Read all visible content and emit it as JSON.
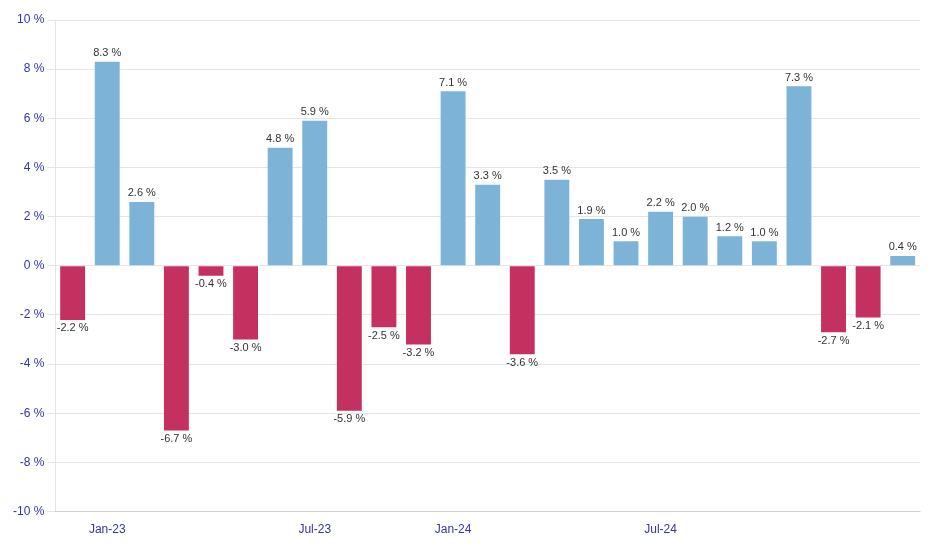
{
  "chart_data": {
    "type": "bar",
    "categories": [
      null,
      "Jan-23",
      null,
      null,
      null,
      null,
      null,
      "Jul-23",
      null,
      null,
      null,
      "Jan-24",
      null,
      null,
      null,
      null,
      null,
      "Jul-24",
      null,
      null,
      null,
      null,
      null,
      null,
      null
    ],
    "values": [
      -2.2,
      8.3,
      2.6,
      -6.7,
      -0.4,
      -3.0,
      4.8,
      5.9,
      -5.9,
      -2.5,
      -3.2,
      7.1,
      3.3,
      -3.6,
      3.5,
      1.9,
      1.0,
      2.2,
      2.0,
      1.2,
      1.0,
      7.3,
      -2.7,
      -2.1,
      0.4
    ],
    "value_labels": [
      "-2.2 %",
      "8.3 %",
      "2.6 %",
      "-6.7 %",
      "-0.4 %",
      "-3.0 %",
      "4.8 %",
      "5.9 %",
      "-5.9 %",
      "-2.5 %",
      "-3.2 %",
      "7.1 %",
      "3.3 %",
      "-3.6 %",
      "3.5 %",
      "1.9 %",
      "1.0 %",
      "2.2 %",
      "2.0 %",
      "1.2 %",
      "1.0 %",
      "7.3 %",
      "-2.7 %",
      "-2.1 %",
      "0.4 %"
    ],
    "colors": [
      "#C43060",
      "#7EB3D8",
      "#7EB3D8",
      "#C43060",
      "#C43060",
      "#C43060",
      "#7EB3D8",
      "#7EB3D8",
      "#C43060",
      "#C43060",
      "#C43060",
      "#7EB3D8",
      "#7EB3D8",
      "#C43060",
      "#7EB3D8",
      "#7EB3D8",
      "#7EB3D8",
      "#7EB3D8",
      "#7EB3D8",
      "#7EB3D8",
      "#7EB3D8",
      "#7EB3D8",
      "#C43060",
      "#C43060",
      "#7EB3D8"
    ],
    "ylim": [
      -10,
      10
    ],
    "yticks": [
      {
        "value": -10,
        "label": "-10 %"
      },
      {
        "value": -8,
        "label": "-8 %"
      },
      {
        "value": -6,
        "label": "-6 %"
      },
      {
        "value": -4,
        "label": "-4 %"
      },
      {
        "value": -2,
        "label": "-2 %"
      },
      {
        "value": 0,
        "label": "0 %"
      },
      {
        "value": 2,
        "label": "2 %"
      },
      {
        "value": 4,
        "label": "4 %"
      },
      {
        "value": 6,
        "label": "6 %"
      },
      {
        "value": 8,
        "label": "8 %"
      },
      {
        "value": 10,
        "label": "10 %"
      }
    ],
    "grid": true,
    "data_labels": true
  }
}
